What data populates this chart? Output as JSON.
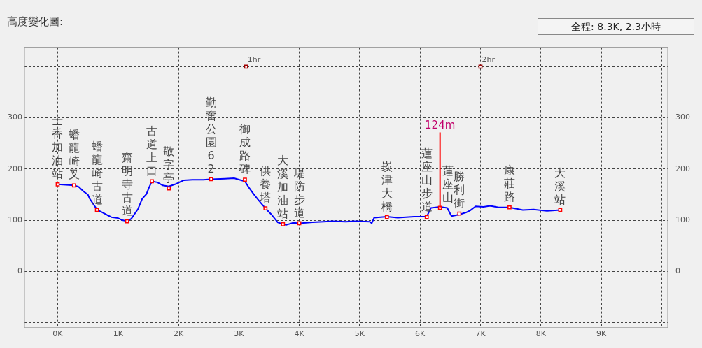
{
  "chart_data": {
    "type": "line",
    "title": "高度變化圖:",
    "annotations": [
      "全程: 8.3K, 2.3小時",
      {
        "text": "124m",
        "x": 6.33,
        "y": 124
      },
      {
        "text": "1hr",
        "x": 3.12,
        "y": 400
      },
      {
        "text": "2hr",
        "x": 7.0,
        "y": 400
      }
    ],
    "xlim": [
      -0.55,
      10.1
    ],
    "xticks": [
      {
        "value": 0,
        "label": "0K"
      },
      {
        "value": 1,
        "label": "1K"
      },
      {
        "value": 2,
        "label": "2K"
      },
      {
        "value": 3,
        "label": "3K"
      },
      {
        "value": 4,
        "label": "4K"
      },
      {
        "value": 5,
        "label": "5K"
      },
      {
        "value": 6,
        "label": "6K"
      },
      {
        "value": 7,
        "label": "7K"
      },
      {
        "value": 8,
        "label": "8K"
      },
      {
        "value": 9,
        "label": "9K"
      },
      {
        "value": 10,
        "label": null
      }
    ],
    "ylim": [
      -110,
      438
    ],
    "yticks": [
      {
        "value": -100,
        "label": null
      },
      0,
      100,
      200,
      300,
      {
        "value": 400,
        "label": null
      }
    ],
    "y2lim": [
      -110,
      438
    ],
    "y2ticks": [
      0,
      100,
      200,
      300
    ],
    "grid": true,
    "legend": false,
    "series": [
      {
        "color": "#0000ff",
        "marker": "none",
        "x": [
          0,
          0.275,
          0.35,
          0.42,
          0.5,
          0.53,
          0.655,
          0.71,
          0.82,
          0.89,
          1.0,
          1.07,
          1.15,
          1.22,
          1.33,
          1.4,
          1.47,
          1.51,
          1.56,
          1.65,
          1.74,
          1.84,
          1.94,
          2.09,
          2.23,
          2.41,
          2.54,
          2.77,
          2.92,
          3.1,
          3.17,
          3.25,
          3.32,
          3.44,
          3.54,
          3.64,
          3.73,
          3.79,
          3.9,
          4.0,
          4.22,
          4.4,
          4.55,
          4.77,
          4.91,
          5.17,
          5.2,
          5.24,
          5.45,
          5.63,
          5.9,
          6.11,
          6.18,
          6.33,
          6.45,
          6.52,
          6.65,
          6.76,
          6.83,
          6.92,
          7.05,
          7.16,
          7.3,
          7.48,
          7.7,
          7.88,
          8.1,
          8.32
        ],
        "values": [
          170,
          168,
          165,
          157,
          150,
          142,
          120,
          117,
          110,
          106,
          104,
          100,
          98,
          103,
          122,
          142,
          151,
          163,
          176,
          174,
          168,
          166,
          170,
          178,
          179,
          179,
          180,
          181,
          182,
          176,
          163,
          150,
          140,
          123,
          111,
          96,
          92,
          91,
          95,
          94,
          96,
          97,
          98,
          97,
          98,
          97,
          94,
          105,
          107,
          105,
          107,
          107,
          124,
          126,
          124,
          108,
          111,
          115,
          119,
          127,
          126,
          128,
          125,
          125,
          120,
          121,
          118,
          120
        ]
      },
      {
        "type": "scatter",
        "color": "#ff0000",
        "marker": "square",
        "x": [
          0,
          0.27,
          0.65,
          1.15,
          1.56,
          1.84,
          2.54,
          3.1,
          3.44,
          3.73,
          4.0,
          5.45,
          6.11,
          6.33,
          6.65,
          7.48,
          8.32
        ],
        "values": [
          170,
          168,
          120,
          98,
          176,
          162,
          180,
          179,
          123,
          92,
          94,
          106,
          106,
          124,
          113,
          125,
          120
        ],
        "value_labels": [
          "士香加油站",
          "蟠龍崎叉",
          "蟠龍崎古道",
          "齋明寺古道",
          "古道上口",
          "敬字亭",
          "勤奮公園62",
          "御成路碑",
          "供養塔",
          "大溪加油站",
          "堤防步道",
          "崁津大橋",
          "蓮座山步道",
          "蓮座山",
          "勝利街",
          "康莊路",
          "大溪站"
        ]
      },
      {
        "type": "scatter",
        "color": "#a00000",
        "marker": "square",
        "x": [
          3.12,
          7.0
        ],
        "values": [
          400,
          400
        ]
      }
    ]
  }
}
